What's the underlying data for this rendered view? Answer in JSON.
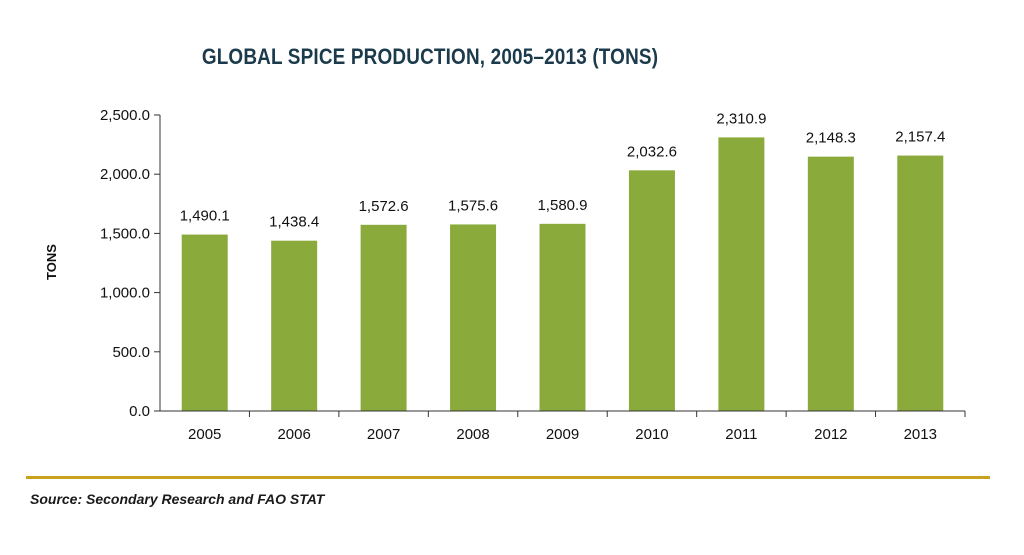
{
  "chart_data": {
    "type": "bar",
    "title": "GLOBAL SPICE PRODUCTION, 2005–2013 (TONS)",
    "xlabel": "",
    "ylabel": "TONS",
    "categories": [
      "2005",
      "2006",
      "2007",
      "2008",
      "2009",
      "2010",
      "2011",
      "2012",
      "2013"
    ],
    "values": [
      1490.1,
      1438.4,
      1572.6,
      1575.6,
      1580.9,
      2032.6,
      2310.9,
      2148.3,
      2157.4
    ],
    "value_labels": [
      "1,490.1",
      "1,438.4",
      "1,572.6",
      "1,575.6",
      "1,580.9",
      "2,032.6",
      "2,310.9",
      "2,148.3",
      "2,157.4"
    ],
    "ylim": [
      0,
      2500
    ],
    "yticks": [
      0,
      500,
      1000,
      1500,
      2000,
      2500
    ],
    "ytick_labels": [
      "0.0",
      "500.0",
      "1,000.0",
      "1,500.0",
      "2,000.0",
      "2,500.0"
    ],
    "bar_color": "#8aab3c",
    "grid": false,
    "legend": "none"
  },
  "source": "Source: Secondary Research and FAO STAT",
  "colors": {
    "title": "#1b3a4b",
    "divider": "#c8a21e"
  }
}
